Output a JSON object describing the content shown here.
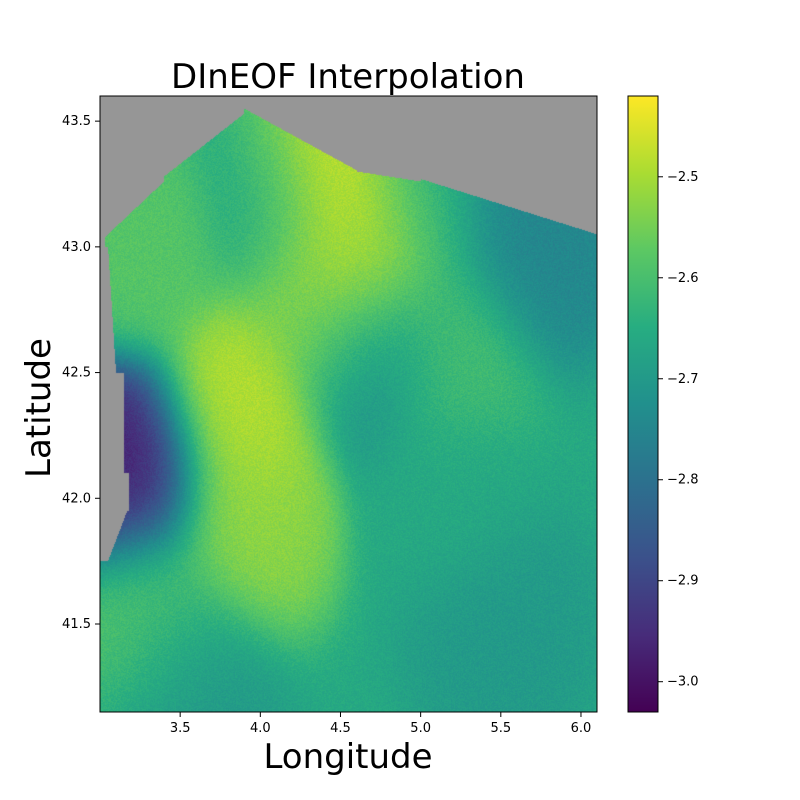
{
  "chart_data": {
    "type": "heatmap",
    "title": "DInEOF Interpolation",
    "xlabel": "Longitude",
    "ylabel": "Latitude",
    "xlim": [
      3.0,
      6.1
    ],
    "ylim": [
      41.15,
      43.6
    ],
    "x_ticks": [
      3.5,
      4.0,
      4.5,
      5.0,
      5.5,
      6.0
    ],
    "x_tick_labels": [
      "3.5",
      "4.0",
      "4.5",
      "5.0",
      "5.5",
      "6.0"
    ],
    "y_ticks": [
      41.5,
      42.0,
      42.5,
      43.0,
      43.5
    ],
    "y_tick_labels": [
      "41.5",
      "42.0",
      "42.5",
      "43.0",
      "43.5"
    ],
    "colormap": "viridis",
    "land_color": "#969696",
    "colorbar": {
      "min": -3.03,
      "max": -2.42,
      "ticks": [
        -2.5,
        -2.6,
        -2.7,
        -2.8,
        -2.9,
        -3.0
      ],
      "tick_labels": [
        "−2.5",
        "−2.6",
        "−2.7",
        "−2.8",
        "−2.9",
        "−3.0"
      ]
    },
    "features": [
      {
        "lon": 4.35,
        "lat": 43.3,
        "value": -2.42
      },
      {
        "lon": 4.6,
        "lat": 42.95,
        "value": -2.47
      },
      {
        "lon": 4.8,
        "lat": 43.15,
        "value": -2.45
      },
      {
        "lon": 3.85,
        "lat": 42.35,
        "value": -2.48
      },
      {
        "lon": 3.9,
        "lat": 41.9,
        "value": -2.52
      },
      {
        "lon": 4.35,
        "lat": 42.8,
        "value": -2.53
      },
      {
        "lon": 3.3,
        "lat": 43.0,
        "value": -2.58
      },
      {
        "lon": 3.3,
        "lat": 41.55,
        "value": -2.58
      },
      {
        "lon": 4.1,
        "lat": 43.2,
        "value": -2.68
      },
      {
        "lon": 4.7,
        "lat": 42.6,
        "value": -2.72
      },
      {
        "lon": 5.2,
        "lat": 42.0,
        "value": -2.66
      },
      {
        "lon": 5.5,
        "lat": 41.5,
        "value": -2.7
      },
      {
        "lon": 3.55,
        "lat": 41.3,
        "value": -2.7
      },
      {
        "lon": 5.0,
        "lat": 43.2,
        "value": -2.72
      },
      {
        "lon": 5.7,
        "lat": 43.0,
        "value": -2.75
      },
      {
        "lon": 3.2,
        "lat": 42.1,
        "value": -2.98
      },
      {
        "lon": 5.2,
        "lat": 42.6,
        "value": -2.6
      }
    ]
  }
}
